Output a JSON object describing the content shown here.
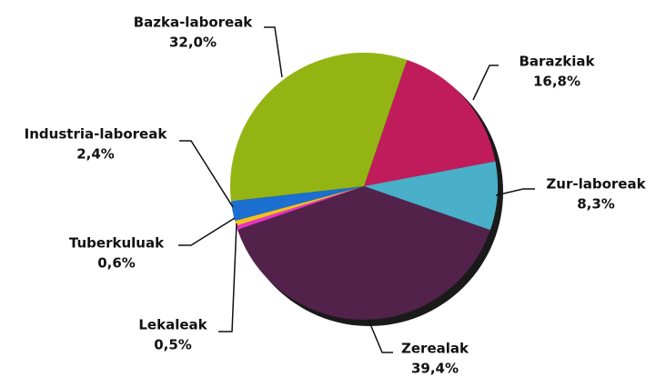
{
  "chart_data": {
    "type": "pie",
    "categories": [
      "Barazkiak",
      "Zur-laboreak",
      "Zerealak",
      "Lekaleak",
      "Tuberkuluak",
      "Industria-laboreak",
      "Bazka-laboreak"
    ],
    "values": [
      16.8,
      8.3,
      39.4,
      0.5,
      0.6,
      2.4,
      32.0
    ],
    "value_labels": [
      "16,8%",
      "8,3%",
      "39,4%",
      "0,5%",
      "0,6%",
      "2,4%",
      "32,0%"
    ],
    "colors": [
      "#c01c5c",
      "#4aafc8",
      "#52224a",
      "#e830c8",
      "#f0c020",
      "#1a6fd0",
      "#94b414"
    ]
  }
}
